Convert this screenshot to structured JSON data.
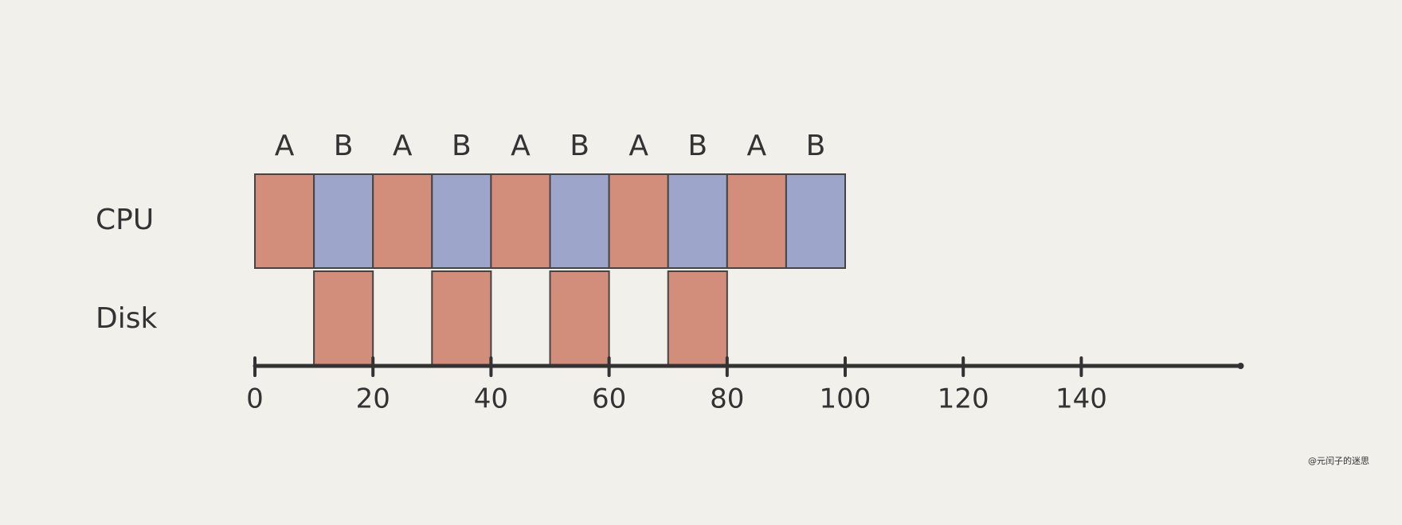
{
  "chart_data": {
    "type": "gantt",
    "rows": [
      {
        "name": "CPU",
        "tasks": [
          {
            "label": "A",
            "start": 0,
            "end": 10,
            "color": "#d38e7b"
          },
          {
            "label": "B",
            "start": 10,
            "end": 20,
            "color": "#9ea5cb"
          },
          {
            "label": "A",
            "start": 20,
            "end": 30,
            "color": "#d38e7b"
          },
          {
            "label": "B",
            "start": 30,
            "end": 40,
            "color": "#9ea5cb"
          },
          {
            "label": "A",
            "start": 40,
            "end": 50,
            "color": "#d38e7b"
          },
          {
            "label": "B",
            "start": 50,
            "end": 60,
            "color": "#9ea5cb"
          },
          {
            "label": "A",
            "start": 60,
            "end": 70,
            "color": "#d38e7b"
          },
          {
            "label": "B",
            "start": 70,
            "end": 80,
            "color": "#9ea5cb"
          },
          {
            "label": "A",
            "start": 80,
            "end": 90,
            "color": "#d38e7b"
          },
          {
            "label": "B",
            "start": 90,
            "end": 100,
            "color": "#9ea5cb"
          }
        ]
      },
      {
        "name": "Disk",
        "tasks": [
          {
            "start": 10,
            "end": 20,
            "color": "#d38e7b"
          },
          {
            "start": 30,
            "end": 40,
            "color": "#d38e7b"
          },
          {
            "start": 50,
            "end": 60,
            "color": "#d38e7b"
          },
          {
            "start": 70,
            "end": 80,
            "color": "#d38e7b"
          }
        ]
      }
    ],
    "xlim": [
      0,
      167
    ],
    "xticks": [
      0,
      20,
      40,
      60,
      80,
      100,
      120,
      140
    ],
    "watermark": "@元闰子的迷思"
  }
}
